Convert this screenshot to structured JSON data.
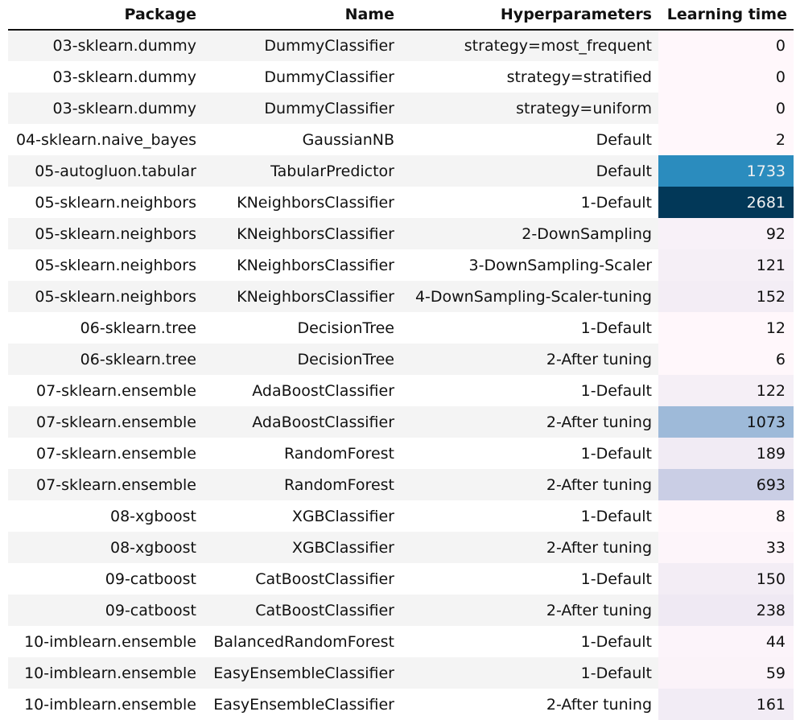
{
  "table": {
    "headers": {
      "package": "Package",
      "name": "Name",
      "hyperparameters": "Hyperparameters",
      "learning_time": "Learning time"
    },
    "rows": [
      {
        "package": "03-sklearn.dummy",
        "name": "DummyClassifier",
        "hyperparameters": "strategy=most_frequent",
        "learning_time": "0",
        "bg": "#fff7fb",
        "fg": "#111111"
      },
      {
        "package": "03-sklearn.dummy",
        "name": "DummyClassifier",
        "hyperparameters": "strategy=stratified",
        "learning_time": "0",
        "bg": "#fff7fb",
        "fg": "#111111"
      },
      {
        "package": "03-sklearn.dummy",
        "name": "DummyClassifier",
        "hyperparameters": "strategy=uniform",
        "learning_time": "0",
        "bg": "#fff7fb",
        "fg": "#111111"
      },
      {
        "package": "04-sklearn.naive_bayes",
        "name": "GaussianNB",
        "hyperparameters": "Default",
        "learning_time": "2",
        "bg": "#fff7fb",
        "fg": "#111111"
      },
      {
        "package": "05-autogluon.tabular",
        "name": "TabularPredictor",
        "hyperparameters": "Default",
        "learning_time": "1733",
        "bg": "#2b8cbe",
        "fg": "#f1f1f1"
      },
      {
        "package": "05-sklearn.neighbors",
        "name": "KNeighborsClassifier",
        "hyperparameters": "1-Default",
        "learning_time": "2681",
        "bg": "#023858",
        "fg": "#f1f1f1"
      },
      {
        "package": "05-sklearn.neighbors",
        "name": "KNeighborsClassifier",
        "hyperparameters": "2-DownSampling",
        "learning_time": "92",
        "bg": "#f8f1f8",
        "fg": "#111111"
      },
      {
        "package": "05-sklearn.neighbors",
        "name": "KNeighborsClassifier",
        "hyperparameters": "3-DownSampling-Scaler",
        "learning_time": "121",
        "bg": "#f5eff6",
        "fg": "#111111"
      },
      {
        "package": "05-sklearn.neighbors",
        "name": "KNeighborsClassifier",
        "hyperparameters": "4-DownSampling-Scaler-tuning",
        "learning_time": "152",
        "bg": "#f3edf5",
        "fg": "#111111"
      },
      {
        "package": "06-sklearn.tree",
        "name": "DecisionTree",
        "hyperparameters": "1-Default",
        "learning_time": "12",
        "bg": "#fff7fb",
        "fg": "#111111"
      },
      {
        "package": "06-sklearn.tree",
        "name": "DecisionTree",
        "hyperparameters": "2-After tuning",
        "learning_time": "6",
        "bg": "#fff7fb",
        "fg": "#111111"
      },
      {
        "package": "07-sklearn.ensemble",
        "name": "AdaBoostClassifier",
        "hyperparameters": "1-Default",
        "learning_time": "122",
        "bg": "#f5eff6",
        "fg": "#111111"
      },
      {
        "package": "07-sklearn.ensemble",
        "name": "AdaBoostClassifier",
        "hyperparameters": "2-After tuning",
        "learning_time": "1073",
        "bg": "#9ebad9",
        "fg": "#111111"
      },
      {
        "package": "07-sklearn.ensemble",
        "name": "RandomForest",
        "hyperparameters": "1-Default",
        "learning_time": "189",
        "bg": "#f1ebf4",
        "fg": "#111111"
      },
      {
        "package": "07-sklearn.ensemble",
        "name": "RandomForest",
        "hyperparameters": "2-After tuning",
        "learning_time": "693",
        "bg": "#cacee5",
        "fg": "#111111"
      },
      {
        "package": "08-xgboost",
        "name": "XGBClassifier",
        "hyperparameters": "1-Default",
        "learning_time": "8",
        "bg": "#fff7fb",
        "fg": "#111111"
      },
      {
        "package": "08-xgboost",
        "name": "XGBClassifier",
        "hyperparameters": "2-After tuning",
        "learning_time": "33",
        "bg": "#fdf5fa",
        "fg": "#111111"
      },
      {
        "package": "09-catboost",
        "name": "CatBoostClassifier",
        "hyperparameters": "1-Default",
        "learning_time": "150",
        "bg": "#f3edf5",
        "fg": "#111111"
      },
      {
        "package": "09-catboost",
        "name": "CatBoostClassifier",
        "hyperparameters": "2-After tuning",
        "learning_time": "238",
        "bg": "#efe9f3",
        "fg": "#111111"
      },
      {
        "package": "10-imblearn.ensemble",
        "name": "BalancedRandomForest",
        "hyperparameters": "1-Default",
        "learning_time": "44",
        "bg": "#fcf4fa",
        "fg": "#111111"
      },
      {
        "package": "10-imblearn.ensemble",
        "name": "EasyEnsembleClassifier",
        "hyperparameters": "1-Default",
        "learning_time": "59",
        "bg": "#fbf3f9",
        "fg": "#111111"
      },
      {
        "package": "10-imblearn.ensemble",
        "name": "EasyEnsembleClassifier",
        "hyperparameters": "2-After tuning",
        "learning_time": "161",
        "bg": "#f2ecf5",
        "fg": "#111111"
      }
    ]
  }
}
